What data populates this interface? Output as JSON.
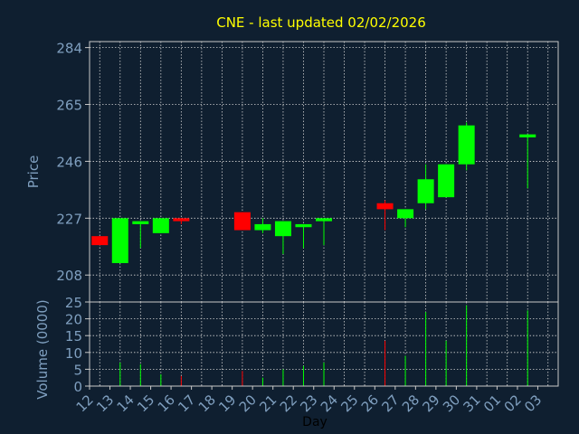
{
  "chart_title": "CNE - last updated 02/02/2026",
  "colors": {
    "background": "#0f1f30",
    "title": "#ffff00",
    "axis_text": "#7f9fbf",
    "grid": "#d0d0d0",
    "up": "#00ff00",
    "down": "#ff0000",
    "frame": "#c8c8c8"
  },
  "chart_data": [
    {
      "type": "candlestick",
      "title": "CNE - last updated 02/02/2026",
      "ylabel": "Price",
      "ylim": [
        199,
        286
      ],
      "yticks": [
        208,
        227,
        246,
        265,
        284
      ],
      "grid": true,
      "days": [
        "12",
        "13",
        "14",
        "15",
        "16",
        "17",
        "18",
        "19",
        "20",
        "21",
        "22",
        "23",
        "24",
        "25",
        "26",
        "27",
        "28",
        "29",
        "30",
        "31",
        "01",
        "02",
        "03"
      ],
      "candles": [
        {
          "day": "12",
          "open": 221,
          "high": 221,
          "low": 218,
          "close": 218
        },
        {
          "day": "13",
          "open": 212,
          "high": 227,
          "low": 212,
          "close": 227
        },
        {
          "day": "14",
          "open": 225,
          "high": 226,
          "low": 217,
          "close": 226
        },
        {
          "day": "15",
          "open": 222,
          "high": 227,
          "low": 222,
          "close": 227
        },
        {
          "day": "16",
          "open": 227,
          "high": 227,
          "low": 225,
          "close": 226
        },
        {
          "day": "19",
          "open": 229,
          "high": 229,
          "low": 223,
          "close": 223
        },
        {
          "day": "20",
          "open": 223,
          "high": 227,
          "low": 222,
          "close": 225
        },
        {
          "day": "21",
          "open": 221,
          "high": 226,
          "low": 215,
          "close": 226
        },
        {
          "day": "22",
          "open": 224,
          "high": 225,
          "low": 217,
          "close": 225
        },
        {
          "day": "23",
          "open": 226,
          "high": 227,
          "low": 218,
          "close": 227
        },
        {
          "day": "26",
          "open": 232,
          "high": 233,
          "low": 223,
          "close": 230
        },
        {
          "day": "27",
          "open": 227,
          "high": 230,
          "low": 224,
          "close": 230
        },
        {
          "day": "28",
          "open": 232,
          "high": 245,
          "low": 230,
          "close": 240
        },
        {
          "day": "29",
          "open": 234,
          "high": 245,
          "low": 234,
          "close": 245
        },
        {
          "day": "30",
          "open": 245,
          "high": 259,
          "low": 243,
          "close": 258
        },
        {
          "day": "02",
          "open": 254,
          "high": 255,
          "low": 237,
          "close": 255
        }
      ]
    },
    {
      "type": "bar",
      "xlabel": "Day",
      "ylabel": "Volume (0000)",
      "ylim": [
        0,
        25
      ],
      "yticks": [
        0,
        5,
        10,
        15,
        20,
        25
      ],
      "grid": true,
      "volumes": [
        {
          "day": "13",
          "value": 7,
          "direction": "up"
        },
        {
          "day": "14",
          "value": 6.5,
          "direction": "up"
        },
        {
          "day": "15",
          "value": 3.5,
          "direction": "up"
        },
        {
          "day": "16",
          "value": 3,
          "direction": "down"
        },
        {
          "day": "19",
          "value": 4.5,
          "direction": "down"
        },
        {
          "day": "20",
          "value": 2.5,
          "direction": "up"
        },
        {
          "day": "21",
          "value": 5,
          "direction": "up"
        },
        {
          "day": "22",
          "value": 6,
          "direction": "up"
        },
        {
          "day": "23",
          "value": 7,
          "direction": "up"
        },
        {
          "day": "26",
          "value": 13.5,
          "direction": "down"
        },
        {
          "day": "27",
          "value": 9,
          "direction": "up"
        },
        {
          "day": "28",
          "value": 22,
          "direction": "up"
        },
        {
          "day": "29",
          "value": 13.5,
          "direction": "up"
        },
        {
          "day": "30",
          "value": 24,
          "direction": "up"
        },
        {
          "day": "02",
          "value": 22.5,
          "direction": "up"
        }
      ]
    }
  ]
}
